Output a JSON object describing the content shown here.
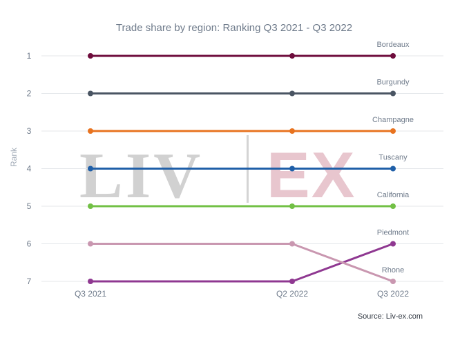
{
  "chart_data": {
    "type": "line",
    "title": "Trade share by region: Ranking Q3 2021 - Q3 2022",
    "ylabel": "Rank",
    "xlabel": "",
    "categories": [
      "Q3 2021",
      "Q2 2022",
      "Q3 2022"
    ],
    "y_reversed": true,
    "ylim": [
      1,
      7
    ],
    "yticks": [
      "1",
      "2",
      "3",
      "4",
      "5",
      "6",
      "7"
    ],
    "grid": true,
    "series": [
      {
        "name": "Bordeaux",
        "values": [
          1,
          1,
          1
        ],
        "color": "#6e0c3c"
      },
      {
        "name": "Burgundy",
        "values": [
          2,
          2,
          2
        ],
        "color": "#4a5563"
      },
      {
        "name": "Champagne",
        "values": [
          3,
          3,
          3
        ],
        "color": "#e8731f"
      },
      {
        "name": "Tuscany",
        "values": [
          4,
          4,
          4
        ],
        "color": "#1f5fa8"
      },
      {
        "name": "California",
        "values": [
          5,
          5,
          5
        ],
        "color": "#72c045"
      },
      {
        "name": "Piedmont",
        "values": [
          7,
          7,
          6
        ],
        "color": "#8f3891"
      },
      {
        "name": "Rhone",
        "values": [
          6,
          6,
          7
        ],
        "color": "#c997b0"
      }
    ],
    "source": "Source: Liv-ex.com"
  },
  "watermark": {
    "text_left": "LIV",
    "text_right": "EX",
    "color_left": "#cfcfcf",
    "color_right": "#e7c3cc"
  }
}
